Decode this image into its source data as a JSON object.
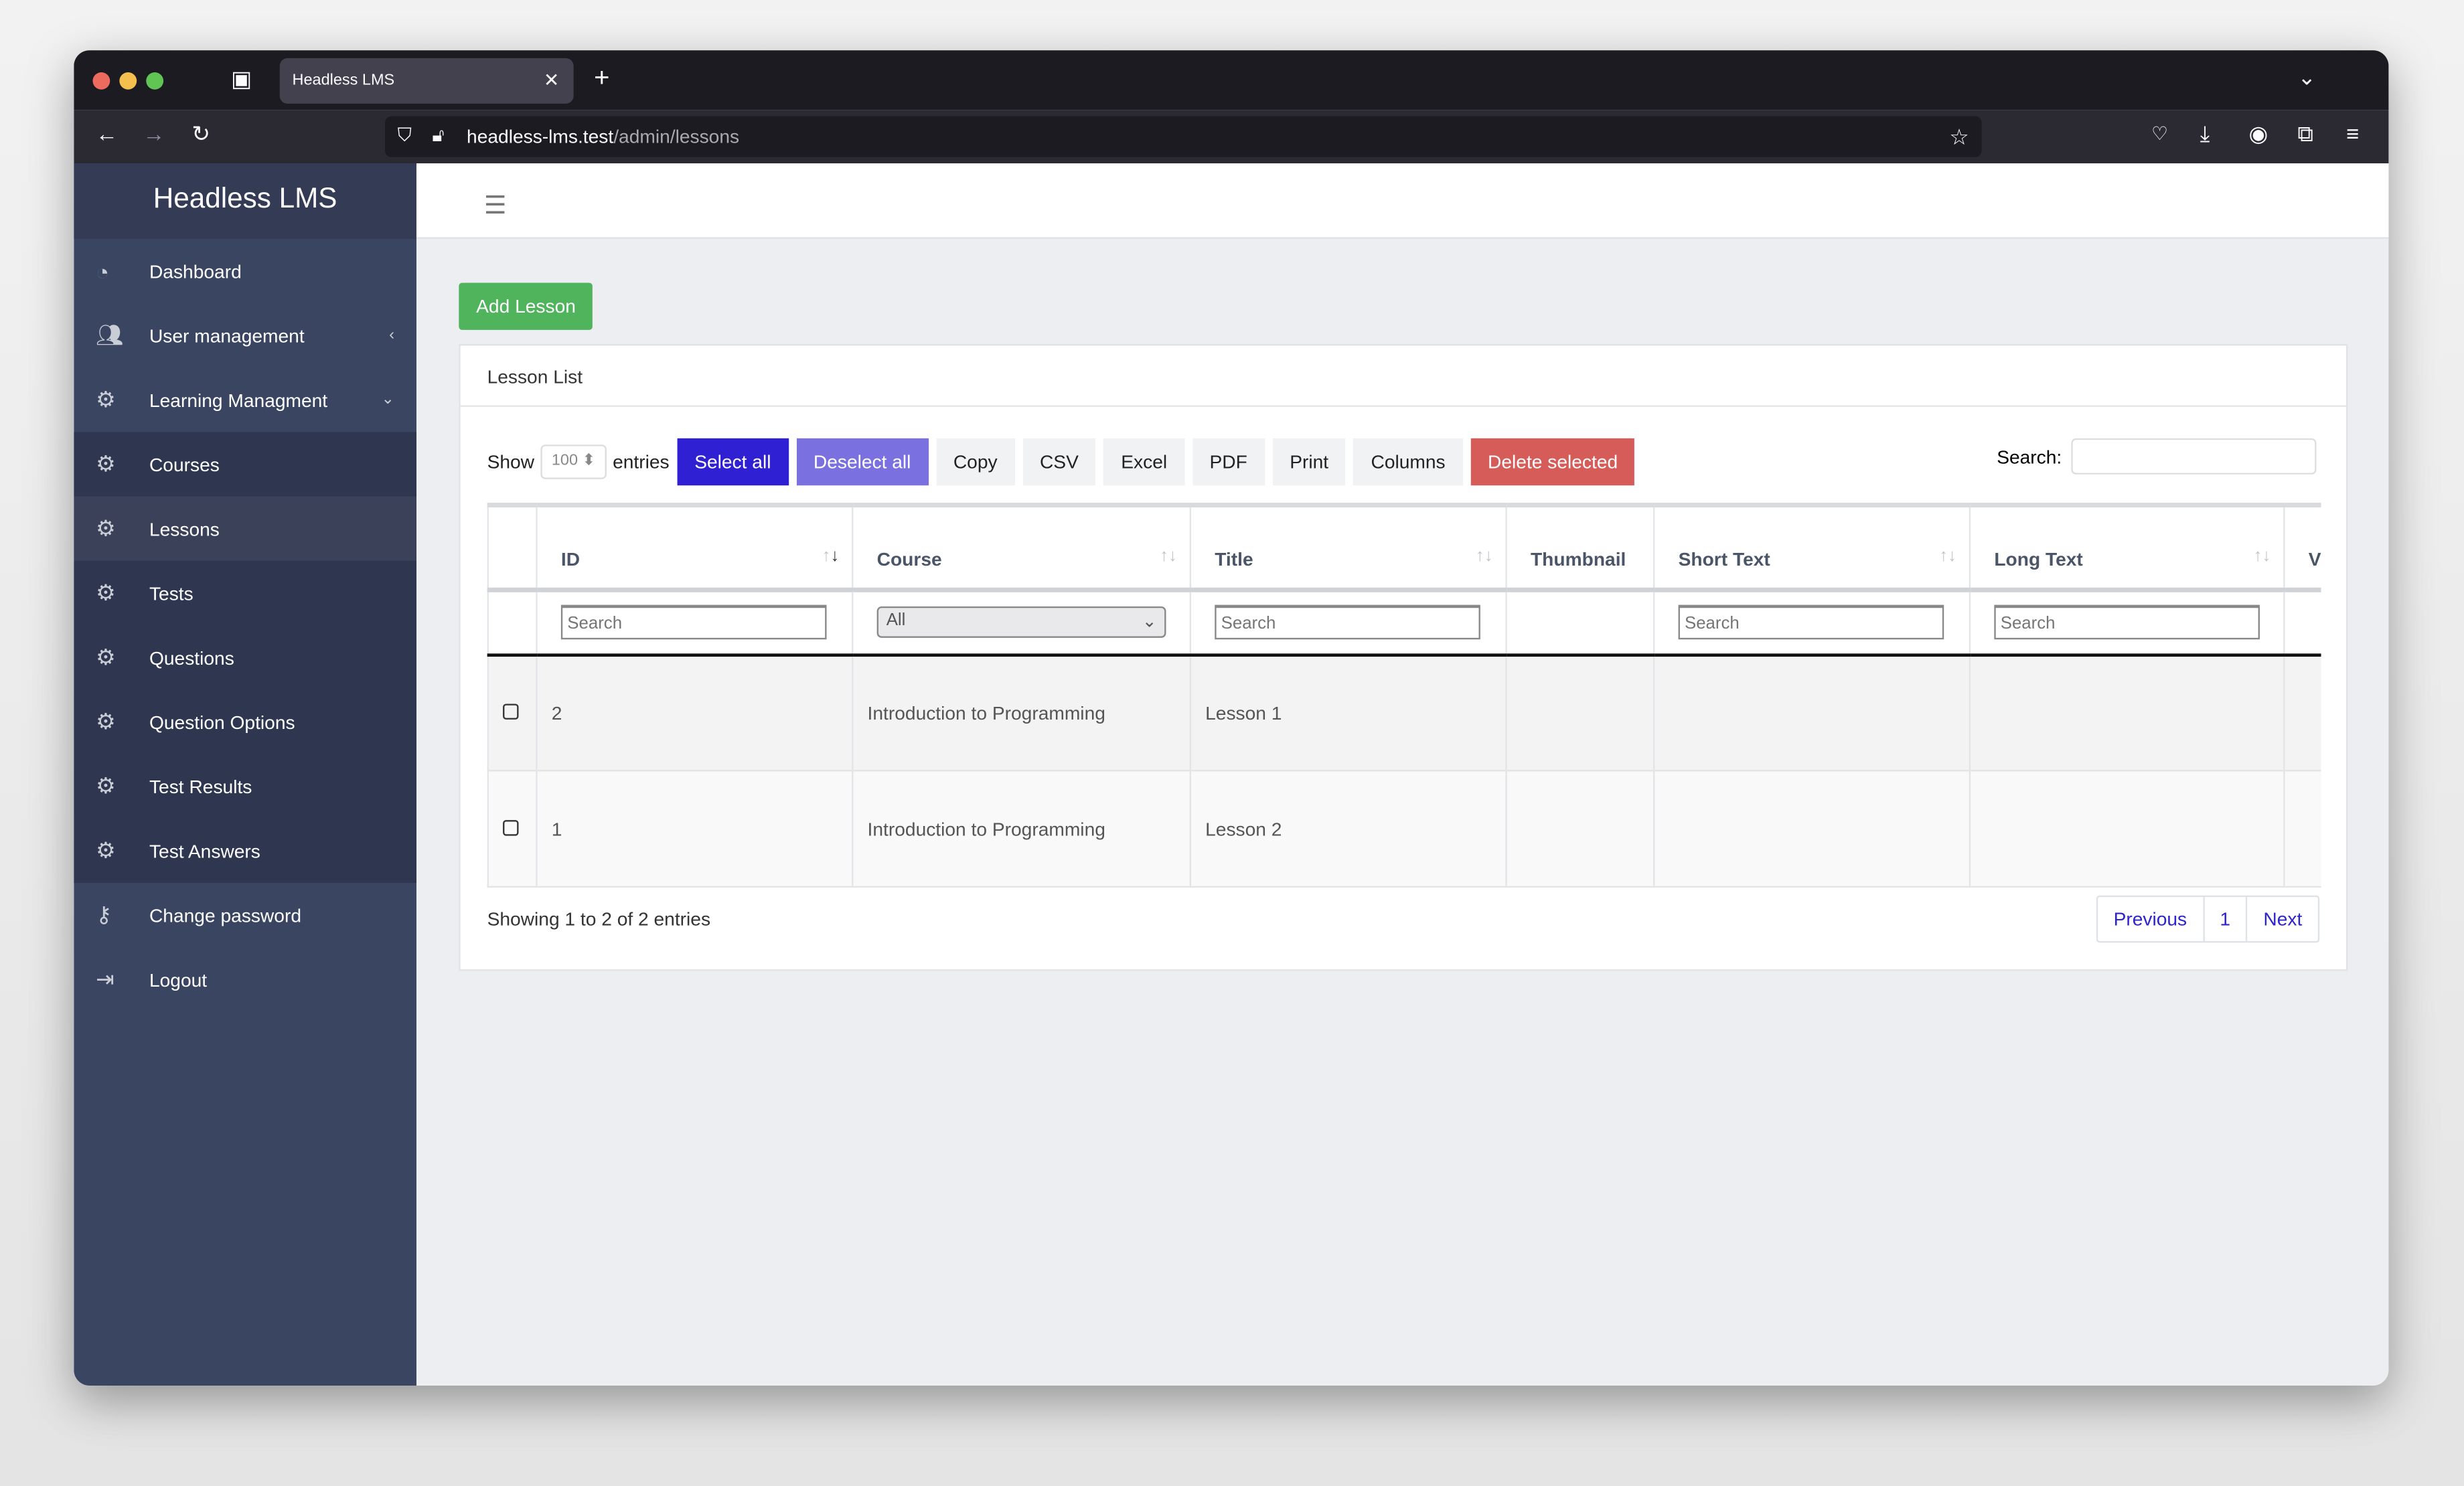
{
  "browser": {
    "tab_title": "Headless LMS",
    "url_host": "headless-lms.test",
    "url_path": "/admin/lessons"
  },
  "sidebar": {
    "brand": "Headless LMS",
    "items": [
      {
        "label": "Dashboard",
        "icon": "dashboard-icon"
      },
      {
        "label": "User management",
        "icon": "users-icon",
        "chevron": "‹"
      },
      {
        "label": "Learning Managment",
        "icon": "gears-icon",
        "chevron": "⌄"
      },
      {
        "label": "Courses",
        "icon": "gears-icon"
      },
      {
        "label": "Lessons",
        "icon": "gears-icon",
        "active": true
      },
      {
        "label": "Tests",
        "icon": "gears-icon"
      },
      {
        "label": "Questions",
        "icon": "gears-icon"
      },
      {
        "label": "Question Options",
        "icon": "gears-icon"
      },
      {
        "label": "Test Results",
        "icon": "gears-icon"
      },
      {
        "label": "Test Answers",
        "icon": "gears-icon"
      },
      {
        "label": "Change password",
        "icon": "key-icon"
      },
      {
        "label": "Logout",
        "icon": "sign-out-icon"
      }
    ]
  },
  "main": {
    "add_button": "Add Lesson",
    "card_title": "Lesson List",
    "show_label": "Show",
    "entries_value": "100",
    "entries_label": "entries",
    "buttons": {
      "select_all": "Select all",
      "deselect_all": "Deselect all",
      "copy": "Copy",
      "csv": "CSV",
      "excel": "Excel",
      "pdf": "PDF",
      "print": "Print",
      "columns": "Columns",
      "delete_selected": "Delete selected"
    },
    "search_label": "Search:",
    "columns": [
      "ID",
      "Course",
      "Title",
      "Thumbnail",
      "Short Text",
      "Long Text",
      "V"
    ],
    "filter_placeholder": "Search",
    "course_filter": "All",
    "rows": [
      {
        "id": "2",
        "course": "Introduction to Programming",
        "title": "Lesson 1"
      },
      {
        "id": "1",
        "course": "Introduction to Programming",
        "title": "Lesson 2"
      }
    ],
    "info": "Showing 1 to 2 of 2 entries",
    "pager": {
      "prev": "Previous",
      "page": "1",
      "next": "Next"
    }
  },
  "colors": {
    "select_all": "#3020d4",
    "deselect_all": "#7a70e0",
    "delete": "#d55c58",
    "add": "#4fb45c",
    "sidebar": "#3a4562"
  }
}
